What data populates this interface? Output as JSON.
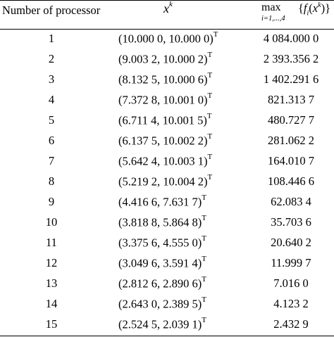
{
  "header": {
    "col1": "Number of processor",
    "col2_base": "x",
    "col2_sup": "k",
    "col3_op": "max",
    "col3_sub": "i=1,...,4",
    "col3_expr_open": "{",
    "col3_expr_f": "f",
    "col3_expr_i": "i",
    "col3_expr_open_paren": "(",
    "col3_expr_x": "x",
    "col3_expr_k": "k",
    "col3_expr_close": ")}"
  },
  "rows": [
    {
      "n": "1",
      "x": "(10.000 0, 10.000 0)",
      "t": "T",
      "max": "4 084.000 0"
    },
    {
      "n": "2",
      "x": "(9.003 2, 10.000 2)",
      "t": "T",
      "max": "2 393.356 2"
    },
    {
      "n": "3",
      "x": "(8.132 5, 10.000 6)",
      "t": "T",
      "max": "1 402.291 6"
    },
    {
      "n": "4",
      "x": "(7.372 8, 10.001 0)",
      "t": "T",
      "max": "821.313 7"
    },
    {
      "n": "5",
      "x": "(6.711 4, 10.001 5)",
      "t": "T",
      "max": "480.727 7"
    },
    {
      "n": "6",
      "x": "(6.137 5, 10.002 2)",
      "t": "T",
      "max": "281.062 2"
    },
    {
      "n": "7",
      "x": "(5.642 4, 10.003 1)",
      "t": "T",
      "max": "164.010 7"
    },
    {
      "n": "8",
      "x": "(5.219 2, 10.004 2)",
      "t": "T",
      "max": "108.446 6"
    },
    {
      "n": "9",
      "x": "(4.416 6, 7.631 7)",
      "t": "T",
      "max": "62.083 4"
    },
    {
      "n": "10",
      "x": "(3.818 8, 5.864 8)",
      "t": "T",
      "max": "35.703 6"
    },
    {
      "n": "11",
      "x": "(3.375 6, 4.555 0)",
      "t": "T",
      "max": "20.640 2"
    },
    {
      "n": "12",
      "x": "(3.049 6, 3.591 4)",
      "t": "T",
      "max": "11.999 7"
    },
    {
      "n": "13",
      "x": "(2.812 6, 2.890 6)",
      "t": "T",
      "max": "7.016 0"
    },
    {
      "n": "14",
      "x": "(2.643 0, 2.389 5)",
      "t": "T",
      "max": "4.123 2"
    },
    {
      "n": "15",
      "x": "(2.524 5, 2.039 1)",
      "t": "T",
      "max": "2.432 9"
    }
  ]
}
